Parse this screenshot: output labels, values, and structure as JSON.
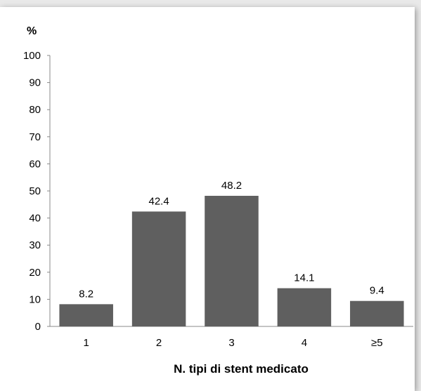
{
  "chart_data": {
    "type": "bar",
    "categories": [
      "1",
      "2",
      "3",
      "4",
      "≥5"
    ],
    "values": [
      8.2,
      42.4,
      48.2,
      14.1,
      9.4
    ],
    "data_labels": [
      "8.2",
      "42.4",
      "48.2",
      "14.1",
      "9.4"
    ],
    "title": "",
    "ylabel": "%",
    "xlabel": "N. tipi di stent medicato",
    "ylim": [
      0,
      100
    ],
    "yticks": [
      0,
      10,
      20,
      30,
      40,
      50,
      60,
      70,
      80,
      90,
      100
    ],
    "grid": false,
    "legend": "none",
    "bar_color": "#5f5f5f"
  }
}
